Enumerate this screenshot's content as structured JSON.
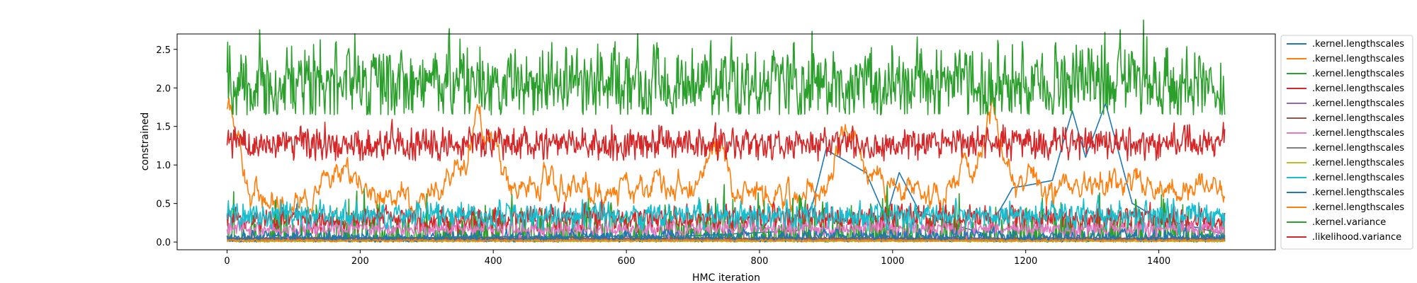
{
  "chart_data": {
    "type": "line",
    "title": "",
    "xlabel": "HMC iteration",
    "ylabel": "constrained",
    "xlim": [
      -75,
      1575
    ],
    "ylim": [
      -0.1,
      2.7
    ],
    "xticks": [
      0,
      200,
      400,
      600,
      800,
      1000,
      1200,
      1400
    ],
    "xtick_labels": [
      "0",
      "200",
      "400",
      "600",
      "800",
      "1000",
      "1200",
      "1400"
    ],
    "yticks": [
      0.0,
      0.5,
      1.0,
      1.5,
      2.0,
      2.5
    ],
    "ytick_labels": [
      "0.0",
      "0.5",
      "1.0",
      "1.5",
      "2.0",
      "2.5"
    ],
    "legend_position": "outside-right",
    "grid": false,
    "n_samples": 1500,
    "series": [
      {
        "name": ".kernel.lengthscales",
        "color": "#1f77b4",
        "keyframes": [
          [
            0,
            0.05
          ],
          [
            300,
            0.06
          ],
          [
            700,
            0.08
          ],
          [
            860,
            0.15
          ],
          [
            880,
            0.5
          ],
          [
            900,
            1.2
          ],
          [
            960,
            0.9
          ],
          [
            990,
            0.3
          ],
          [
            1010,
            0.9
          ],
          [
            1040,
            0.4
          ],
          [
            1100,
            0.2
          ],
          [
            1140,
            0.1
          ],
          [
            1180,
            0.7
          ],
          [
            1240,
            0.8
          ],
          [
            1270,
            1.7
          ],
          [
            1290,
            1.1
          ],
          [
            1320,
            1.8
          ],
          [
            1360,
            0.5
          ],
          [
            1400,
            0.3
          ],
          [
            1499,
            0.1
          ]
        ]
      },
      {
        "name": ".kernel.lengthscales",
        "color": "#ff7f0e",
        "keyframes": [
          [
            0,
            1.7
          ],
          [
            12,
            1.5
          ],
          [
            25,
            0.7
          ],
          [
            80,
            0.55
          ],
          [
            150,
            0.7
          ],
          [
            200,
            0.8
          ],
          [
            250,
            0.6
          ],
          [
            320,
            0.55
          ],
          [
            360,
            1.0
          ],
          [
            375,
            1.6
          ],
          [
            390,
            1.5
          ],
          [
            420,
            0.7
          ],
          [
            500,
            0.8
          ],
          [
            560,
            0.65
          ],
          [
            600,
            0.7
          ],
          [
            650,
            0.8
          ],
          [
            700,
            0.6
          ],
          [
            740,
            1.4
          ],
          [
            760,
            0.8
          ],
          [
            820,
            0.6
          ],
          [
            900,
            0.7
          ],
          [
            930,
            1.6
          ],
          [
            960,
            0.9
          ],
          [
            1000,
            0.7
          ],
          [
            1060,
            0.6
          ],
          [
            1120,
            0.9
          ],
          [
            1150,
            1.8
          ],
          [
            1180,
            0.8
          ],
          [
            1250,
            0.7
          ],
          [
            1300,
            0.8
          ],
          [
            1400,
            0.7
          ],
          [
            1499,
            0.7
          ]
        ]
      },
      {
        "name": ".kernel.lengthscales",
        "color": "#2ca02c",
        "keyframes": [
          [
            0,
            0.02
          ],
          [
            1499,
            0.02
          ]
        ]
      },
      {
        "name": ".kernel.lengthscales",
        "color": "#d62728",
        "keyframes": [
          [
            0,
            0.3
          ],
          [
            1499,
            0.3
          ]
        ]
      },
      {
        "name": ".kernel.lengthscales",
        "color": "#9467bd",
        "keyframes": [
          [
            0,
            0.04
          ],
          [
            1499,
            0.04
          ]
        ]
      },
      {
        "name": ".kernel.lengthscales",
        "color": "#8c564b",
        "keyframes": [
          [
            0,
            0.05
          ],
          [
            1499,
            0.05
          ]
        ]
      },
      {
        "name": ".kernel.lengthscales",
        "color": "#e377c2",
        "keyframes": [
          [
            0,
            0.17
          ],
          [
            1499,
            0.17
          ]
        ]
      },
      {
        "name": ".kernel.lengthscales",
        "color": "#7f7f7f",
        "keyframes": [
          [
            0,
            0.03
          ],
          [
            1499,
            0.03
          ]
        ]
      },
      {
        "name": ".kernel.lengthscales",
        "color": "#bcbd22",
        "keyframes": [
          [
            0,
            0.01
          ],
          [
            1499,
            0.01
          ]
        ]
      },
      {
        "name": ".kernel.lengthscales",
        "color": "#17becf",
        "keyframes": [
          [
            0,
            0.35
          ],
          [
            1499,
            0.35
          ]
        ]
      },
      {
        "name": ".kernel.lengthscales",
        "color": "#1f77b4",
        "keyframes": [
          [
            0,
            0.07
          ],
          [
            1499,
            0.07
          ]
        ]
      },
      {
        "name": ".kernel.lengthscales",
        "color": "#ff7f0e",
        "keyframes": [
          [
            0,
            0.02
          ],
          [
            1499,
            0.02
          ]
        ]
      },
      {
        "name": ".kernel.variance",
        "color": "#2ca02c",
        "keyframes": [
          [
            0,
            2.05
          ],
          [
            1499,
            2.05
          ]
        ]
      },
      {
        "name": ".likelihood.variance",
        "color": "#d62728",
        "keyframes": [
          [
            0,
            1.28
          ],
          [
            1499,
            1.28
          ]
        ]
      }
    ]
  }
}
